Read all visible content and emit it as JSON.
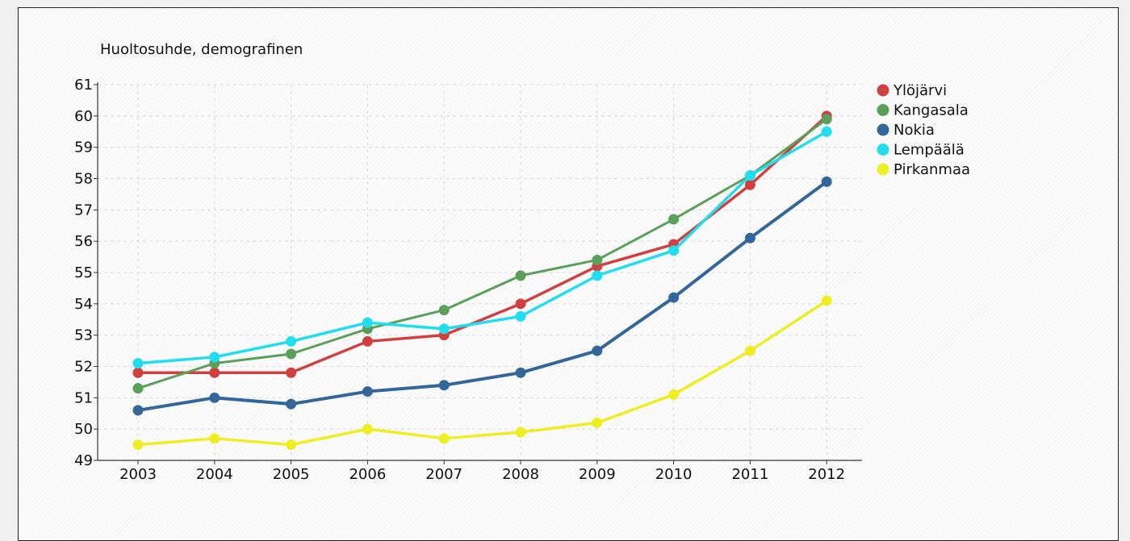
{
  "chart_data": {
    "type": "line",
    "title": "Huoltosuhde, demografinen",
    "xlabel": "",
    "ylabel": "",
    "categories": [
      "2003",
      "2004",
      "2005",
      "2006",
      "2007",
      "2008",
      "2009",
      "2010",
      "2011",
      "2012"
    ],
    "ylim": [
      49,
      61
    ],
    "yticks": [
      "49",
      "50",
      "51",
      "52",
      "53",
      "54",
      "55",
      "56",
      "57",
      "58",
      "59",
      "60",
      "61"
    ],
    "grid": true,
    "legend_position": "right",
    "series": [
      {
        "name": "Ylöjärvi",
        "color": "#d04040",
        "values": [
          51.8,
          51.8,
          51.8,
          52.8,
          53.0,
          54.0,
          55.2,
          55.9,
          57.8,
          60.0
        ]
      },
      {
        "name": "Kangasala",
        "color": "#5aa05a",
        "values": [
          51.3,
          52.1,
          52.4,
          53.2,
          53.8,
          54.9,
          55.4,
          56.7,
          58.1,
          59.9
        ]
      },
      {
        "name": "Nokia",
        "color": "#336699",
        "values": [
          50.6,
          51.0,
          50.8,
          51.2,
          51.4,
          51.8,
          52.5,
          54.2,
          56.1,
          57.9
        ]
      },
      {
        "name": "Lempäälä",
        "color": "#22ddee",
        "values": [
          52.1,
          52.3,
          52.8,
          53.4,
          53.2,
          53.6,
          54.9,
          55.7,
          58.1,
          59.5
        ]
      },
      {
        "name": "Pirkanmaa",
        "color": "#eeee22",
        "values": [
          49.5,
          49.7,
          49.5,
          50.0,
          49.7,
          49.9,
          50.2,
          51.1,
          52.5,
          54.1
        ]
      }
    ]
  }
}
